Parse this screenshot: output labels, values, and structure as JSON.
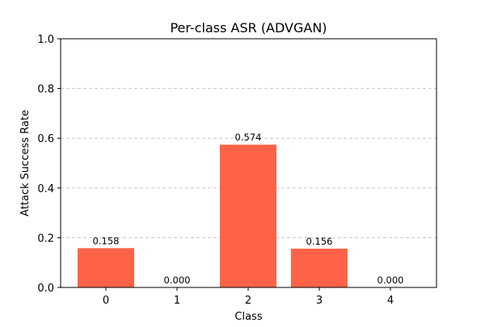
{
  "chart_data": {
    "type": "bar",
    "title": "Per-class ASR (ADVGAN)",
    "xlabel": "Class",
    "ylabel": "Attack Success Rate",
    "categories": [
      "0",
      "1",
      "2",
      "3",
      "4"
    ],
    "values": [
      0.158,
      0.0,
      0.574,
      0.156,
      0.0
    ],
    "value_labels": [
      "0.158",
      "0.000",
      "0.574",
      "0.156",
      "0.000"
    ],
    "ylim": [
      0,
      1.0
    ],
    "yticks": [
      "0.0",
      "0.2",
      "0.4",
      "0.6",
      "0.8",
      "1.0"
    ],
    "ytick_values": [
      0,
      0.2,
      0.4,
      0.6,
      0.8,
      1.0
    ],
    "grid": "y-dashed",
    "bar_color": "#ff6347",
    "grid_color": "#c8c8c8"
  }
}
